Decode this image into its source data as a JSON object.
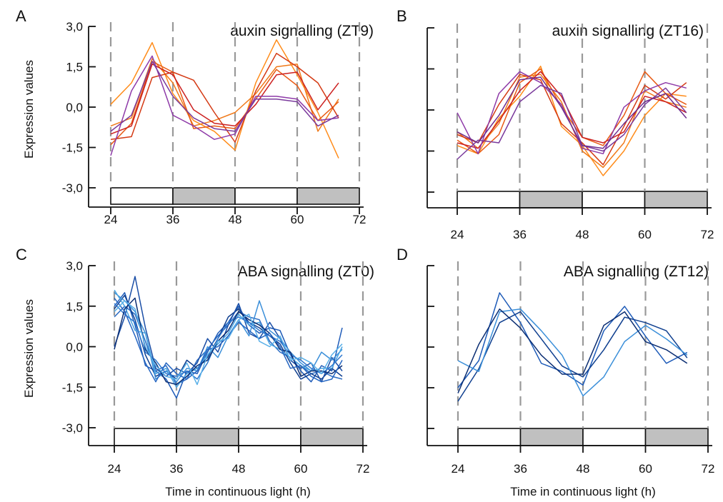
{
  "figure": {
    "x_axis_title": "Time in continuous light (h)",
    "y_axis_title": "Expression values",
    "night_color": "#c0c0c0",
    "dashed_line_color": "#999999"
  },
  "chart_data": [
    {
      "id": "A",
      "type": "line",
      "panel_letter": "A",
      "title": "auxin signalling (ZT9)",
      "xlabel": "",
      "ylabel": "Expression values",
      "xticks": [
        "24",
        "36",
        "48",
        "60",
        "72"
      ],
      "yticks": [
        "3,0",
        "1,5",
        "0,0",
        "-1,5",
        "-3,0"
      ],
      "show_ytick_labels": true,
      "xlim": [
        24,
        72
      ],
      "ylim": [
        -3,
        3
      ],
      "x": [
        24,
        28,
        32,
        36,
        40,
        44,
        48,
        52,
        56,
        60,
        64,
        68
      ],
      "series": [
        {
          "color": "#ff8c1a",
          "values": [
            0.1,
            0.9,
            2.4,
            0.5,
            -0.5,
            -0.9,
            -1.6,
            0.9,
            2.5,
            1.2,
            -0.2,
            -1.9
          ]
        },
        {
          "color": "#f07a1a",
          "values": [
            -0.7,
            -0.4,
            1.8,
            0.9,
            -0.7,
            -0.5,
            -0.2,
            0.5,
            1.5,
            1.6,
            -0.9,
            0.3
          ]
        },
        {
          "color": "#e85a14",
          "values": [
            -1.4,
            -0.6,
            1.7,
            1.3,
            -0.8,
            -0.7,
            -0.8,
            0.3,
            1.4,
            0.8,
            -0.5,
            0.2
          ]
        },
        {
          "color": "#d43a14",
          "values": [
            -1.2,
            -1.1,
            1.1,
            1.3,
            1.0,
            -0.2,
            -1.3,
            0.6,
            2.0,
            1.5,
            0.9,
            -0.4
          ]
        },
        {
          "color": "#cc2020",
          "values": [
            -1.0,
            -0.7,
            1.6,
            1.2,
            -0.1,
            -0.6,
            -0.7,
            0.1,
            1.2,
            1.3,
            -0.1,
            0.9
          ]
        },
        {
          "color": "#8e3aa8",
          "values": [
            -1.8,
            0.6,
            1.9,
            -0.3,
            -0.7,
            -1.2,
            -1.0,
            0.4,
            0.4,
            0.3,
            -0.5,
            -0.4
          ]
        },
        {
          "color": "#7a3a9c",
          "values": [
            -0.9,
            -0.3,
            1.7,
            0.4,
            -0.4,
            -0.8,
            -0.9,
            0.3,
            0.3,
            0.2,
            -0.7,
            -0.3
          ]
        }
      ]
    },
    {
      "id": "B",
      "type": "line",
      "panel_letter": "B",
      "title": "auxin signalling (ZT16)",
      "xlabel": "",
      "ylabel": "",
      "xticks": [
        "24",
        "36",
        "48",
        "60",
        "72"
      ],
      "yticks": [
        "",
        "",
        "",
        "",
        ""
      ],
      "show_ytick_labels": false,
      "xlim": [
        24,
        72
      ],
      "ylim": [
        -3,
        3
      ],
      "x": [
        24,
        28,
        32,
        36,
        40,
        44,
        48,
        52,
        56,
        60,
        64,
        68
      ],
      "series": [
        {
          "color": "#ff8c1a",
          "values": [
            -1.3,
            -1.6,
            -0.3,
            0.5,
            1.6,
            -0.6,
            -1.3,
            -2.4,
            -1.5,
            -0.2,
            0.6,
            0.5
          ]
        },
        {
          "color": "#f07a1a",
          "values": [
            -0.8,
            -1.4,
            -0.5,
            1.2,
            1.3,
            0.3,
            -1.5,
            -2.1,
            -1.2,
            0.7,
            0.3,
            0.1
          ]
        },
        {
          "color": "#e85a14",
          "values": [
            -1.1,
            -1.6,
            -0.9,
            1.0,
            1.5,
            0.1,
            -1.0,
            -1.3,
            -0.2,
            1.4,
            0.6,
            0.2
          ]
        },
        {
          "color": "#d43a14",
          "values": [
            -0.9,
            -1.2,
            0.2,
            1.3,
            1.1,
            -0.5,
            -1.2,
            -2.0,
            -0.6,
            0.9,
            0.4,
            1.0
          ]
        },
        {
          "color": "#cc2020",
          "values": [
            -1.2,
            -1.4,
            -0.4,
            0.7,
            1.4,
            0.5,
            -1.0,
            -1.2,
            -0.8,
            0.5,
            0.3,
            -0.1
          ]
        },
        {
          "color": "#8e3aa8",
          "values": [
            -0.1,
            -1.6,
            0.6,
            1.4,
            1.0,
            0.2,
            -1.4,
            -1.6,
            0.1,
            0.7,
            1.0,
            0.8
          ]
        },
        {
          "color": "#7a3a9c",
          "values": [
            -1.8,
            -1.1,
            -1.2,
            0.3,
            0.9,
            0.6,
            -1.3,
            -1.5,
            -0.9,
            0.2,
            0.8,
            -0.1
          ]
        },
        {
          "color": "#6e2e8e",
          "values": [
            -0.8,
            -1.2,
            -0.2,
            1.1,
            1.2,
            0.1,
            -1.3,
            -1.4,
            -0.5,
            0.3,
            0.6,
            -0.3
          ]
        }
      ]
    },
    {
      "id": "C",
      "type": "line",
      "panel_letter": "C",
      "title": "ABA signalling (ZT0)",
      "xlabel": "Time in continuous light (h)",
      "ylabel": "Expression values",
      "xticks": [
        "24",
        "36",
        "48",
        "60",
        "72"
      ],
      "yticks": [
        "3,0",
        "1,5",
        "0,0",
        "-1,5",
        "-3,0"
      ],
      "show_ytick_labels": true,
      "xlim": [
        24,
        72
      ],
      "ylim": [
        -3,
        3
      ],
      "x": [
        24,
        26,
        28,
        30,
        32,
        34,
        36,
        38,
        40,
        42,
        44,
        46,
        48,
        50,
        52,
        54,
        56,
        58,
        60,
        62,
        64,
        66,
        68
      ],
      "series": [
        {
          "color": "#1e5bb8",
          "values": [
            1.5,
            2.0,
            0.8,
            -0.7,
            -0.9,
            -1.2,
            -1.9,
            -0.9,
            -1.0,
            -0.2,
            0.5,
            0.9,
            1.5,
            0.8,
            0.5,
            0.7,
            0.6,
            -0.3,
            -0.9,
            -1.3,
            -0.7,
            -0.9,
            0.7
          ]
        },
        {
          "color": "#2b6cc4",
          "values": [
            1.1,
            1.5,
            1.2,
            0.2,
            -0.9,
            -0.7,
            -1.4,
            -1.2,
            -0.5,
            -0.1,
            0.4,
            0.8,
            1.3,
            1.1,
            1.0,
            0.2,
            -0.2,
            -0.4,
            -0.7,
            -1.0,
            -0.9,
            -1.1,
            -1.2
          ]
        },
        {
          "color": "#0f3f8f",
          "values": [
            1.4,
            1.9,
            1.0,
            -0.3,
            -1.1,
            -0.9,
            -1.2,
            -0.5,
            -0.8,
            -0.4,
            0.3,
            1.1,
            1.4,
            0.9,
            0.7,
            0.4,
            0.1,
            -0.6,
            -1.2,
            -1.0,
            -1.2,
            -0.8,
            -1.1
          ]
        },
        {
          "color": "#1a4ea6",
          "values": [
            0.0,
            1.1,
            2.6,
            0.7,
            -0.8,
            -1.1,
            -0.8,
            -1.0,
            -0.6,
            0.3,
            -0.2,
            0.8,
            1.6,
            0.5,
            0.3,
            0.9,
            0.3,
            -0.5,
            -0.8,
            -0.6,
            -1.3,
            -0.4,
            -0.9
          ]
        },
        {
          "color": "#3b8fd9",
          "values": [
            2.0,
            1.7,
            1.3,
            0.5,
            -1.2,
            -0.9,
            -1.3,
            -0.8,
            -0.9,
            0.0,
            -0.4,
            0.4,
            1.0,
            0.4,
            1.7,
            0.6,
            0.3,
            -0.2,
            -0.6,
            -0.9,
            -0.2,
            -0.5,
            -0.1
          ]
        },
        {
          "color": "#4aa3e0",
          "values": [
            2.1,
            1.5,
            0.6,
            0.5,
            -1.0,
            -0.8,
            -1.5,
            -1.0,
            -0.8,
            -0.3,
            0.1,
            0.5,
            1.2,
            0.8,
            0.9,
            0.1,
            -0.1,
            -0.4,
            -0.7,
            -0.9,
            -0.8,
            -0.8,
            0.0
          ]
        },
        {
          "color": "#2f78cf",
          "values": [
            1.6,
            1.2,
            0.9,
            -0.2,
            -0.5,
            -1.0,
            -1.1,
            -0.9,
            -1.2,
            -0.6,
            0.3,
            0.9,
            1.1,
            0.9,
            0.6,
            0.4,
            0.2,
            -0.3,
            -0.5,
            -0.8,
            -1.0,
            -0.7,
            -0.3
          ]
        },
        {
          "color": "#0b2e73",
          "values": [
            -0.1,
            1.4,
            1.8,
            -0.1,
            -0.6,
            -1.3,
            -1.4,
            -1.1,
            -0.7,
            -0.5,
            0.2,
            0.6,
            1.3,
            1.0,
            0.8,
            0.5,
            -0.1,
            -0.2,
            -1.1,
            -0.9,
            -0.9,
            -1.0,
            -0.7
          ]
        },
        {
          "color": "#2566c2",
          "values": [
            1.8,
            1.3,
            0.4,
            -0.6,
            -1.3,
            -0.6,
            -1.0,
            -1.2,
            -0.9,
            -0.1,
            0.0,
            0.4,
            0.9,
            0.6,
            0.3,
            0.5,
            0.0,
            -0.8,
            -0.7,
            -1.1,
            -1.3,
            -1.2,
            -0.5
          ]
        },
        {
          "color": "#5ab0e8",
          "values": [
            1.3,
            1.7,
            1.4,
            0.0,
            -0.7,
            -1.1,
            -1.2,
            -0.6,
            -1.4,
            -0.3,
            0.2,
            0.3,
            1.0,
            1.2,
            0.2,
            0.0,
            0.4,
            -0.5,
            -0.4,
            -0.6,
            -1.0,
            -0.3,
            0.1
          ]
        }
      ]
    },
    {
      "id": "D",
      "type": "line",
      "panel_letter": "D",
      "title": "ABA signalling (ZT12)",
      "xlabel": "Time in continuous light (h)",
      "ylabel": "",
      "xticks": [
        "24",
        "36",
        "48",
        "60",
        "72"
      ],
      "yticks": [
        "",
        "",
        "",
        "",
        ""
      ],
      "show_ytick_labels": false,
      "xlim": [
        24,
        72
      ],
      "ylim": [
        -3,
        3
      ],
      "x": [
        24,
        28,
        32,
        36,
        40,
        44,
        48,
        52,
        56,
        60,
        64,
        68
      ],
      "series": [
        {
          "color": "#1e5bb8",
          "values": [
            -1.5,
            -0.5,
            2.0,
            0.9,
            -0.6,
            -0.9,
            -1.4,
            0.6,
            1.5,
            0.4,
            -0.6,
            -0.2
          ]
        },
        {
          "color": "#0f3f8f",
          "values": [
            -2.0,
            -0.8,
            0.9,
            1.3,
            0.3,
            -0.7,
            -1.1,
            -0.1,
            1.1,
            0.9,
            0.6,
            -0.4
          ]
        },
        {
          "color": "#3b8fd9",
          "values": [
            -0.5,
            -0.9,
            1.3,
            1.4,
            0.6,
            -0.3,
            -1.8,
            -1.1,
            0.2,
            0.8,
            0.3,
            -0.3
          ]
        },
        {
          "color": "#0b2e73",
          "values": [
            -1.7,
            0.1,
            1.4,
            0.7,
            -0.3,
            -1.0,
            -1.0,
            0.8,
            1.3,
            0.2,
            -0.1,
            -0.6
          ]
        }
      ]
    }
  ]
}
